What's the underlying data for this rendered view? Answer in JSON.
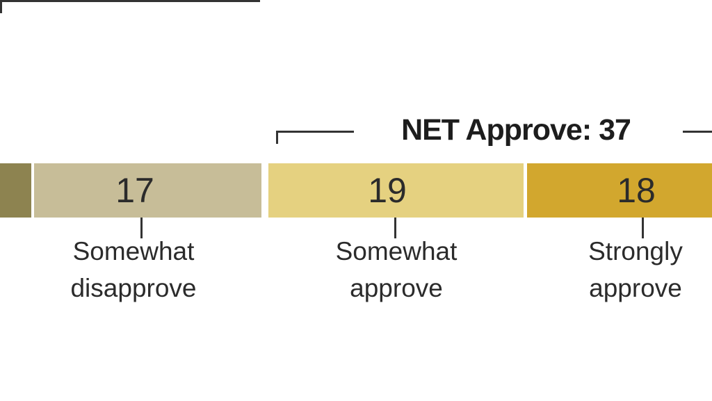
{
  "colors": {
    "background": "#ffffff",
    "line": "#333333",
    "label_text": "#2b2b2b",
    "net_text": "#1d1d1d",
    "segment_partial": "#8d8350",
    "segment_somewhat_disapprove": "#c7bd98",
    "segment_somewhat_approve": "#e5d180",
    "segment_strongly_approve": "#d2a72e"
  },
  "annotation": {
    "net_approve": "NET Approve: 37"
  },
  "chart_data": {
    "type": "bar",
    "subtype": "stacked-horizontal-diverging",
    "annotation": "NET Approve: 37",
    "net_approve_value": 37,
    "segments": [
      {
        "label": "",
        "value": "",
        "color": "#8d8350",
        "note": "segment partially visible, cropped at left edge; value label not shown"
      },
      {
        "label": "Somewhat disapprove",
        "value": 17,
        "color": "#c7bd98"
      },
      {
        "label": "Somewhat approve",
        "value": 19,
        "color": "#e5d180"
      },
      {
        "label": "Strongly approve",
        "value": 18,
        "color": "#d2a72e"
      }
    ],
    "brackets": [
      {
        "side": "left",
        "note": "bracket line over disapprove segments, label cropped off-screen"
      },
      {
        "side": "right",
        "label": "NET Approve: 37",
        "spans": "approve segments"
      }
    ],
    "axis": "none",
    "grid": false,
    "legend_position": "callout-labels-below-bar"
  }
}
